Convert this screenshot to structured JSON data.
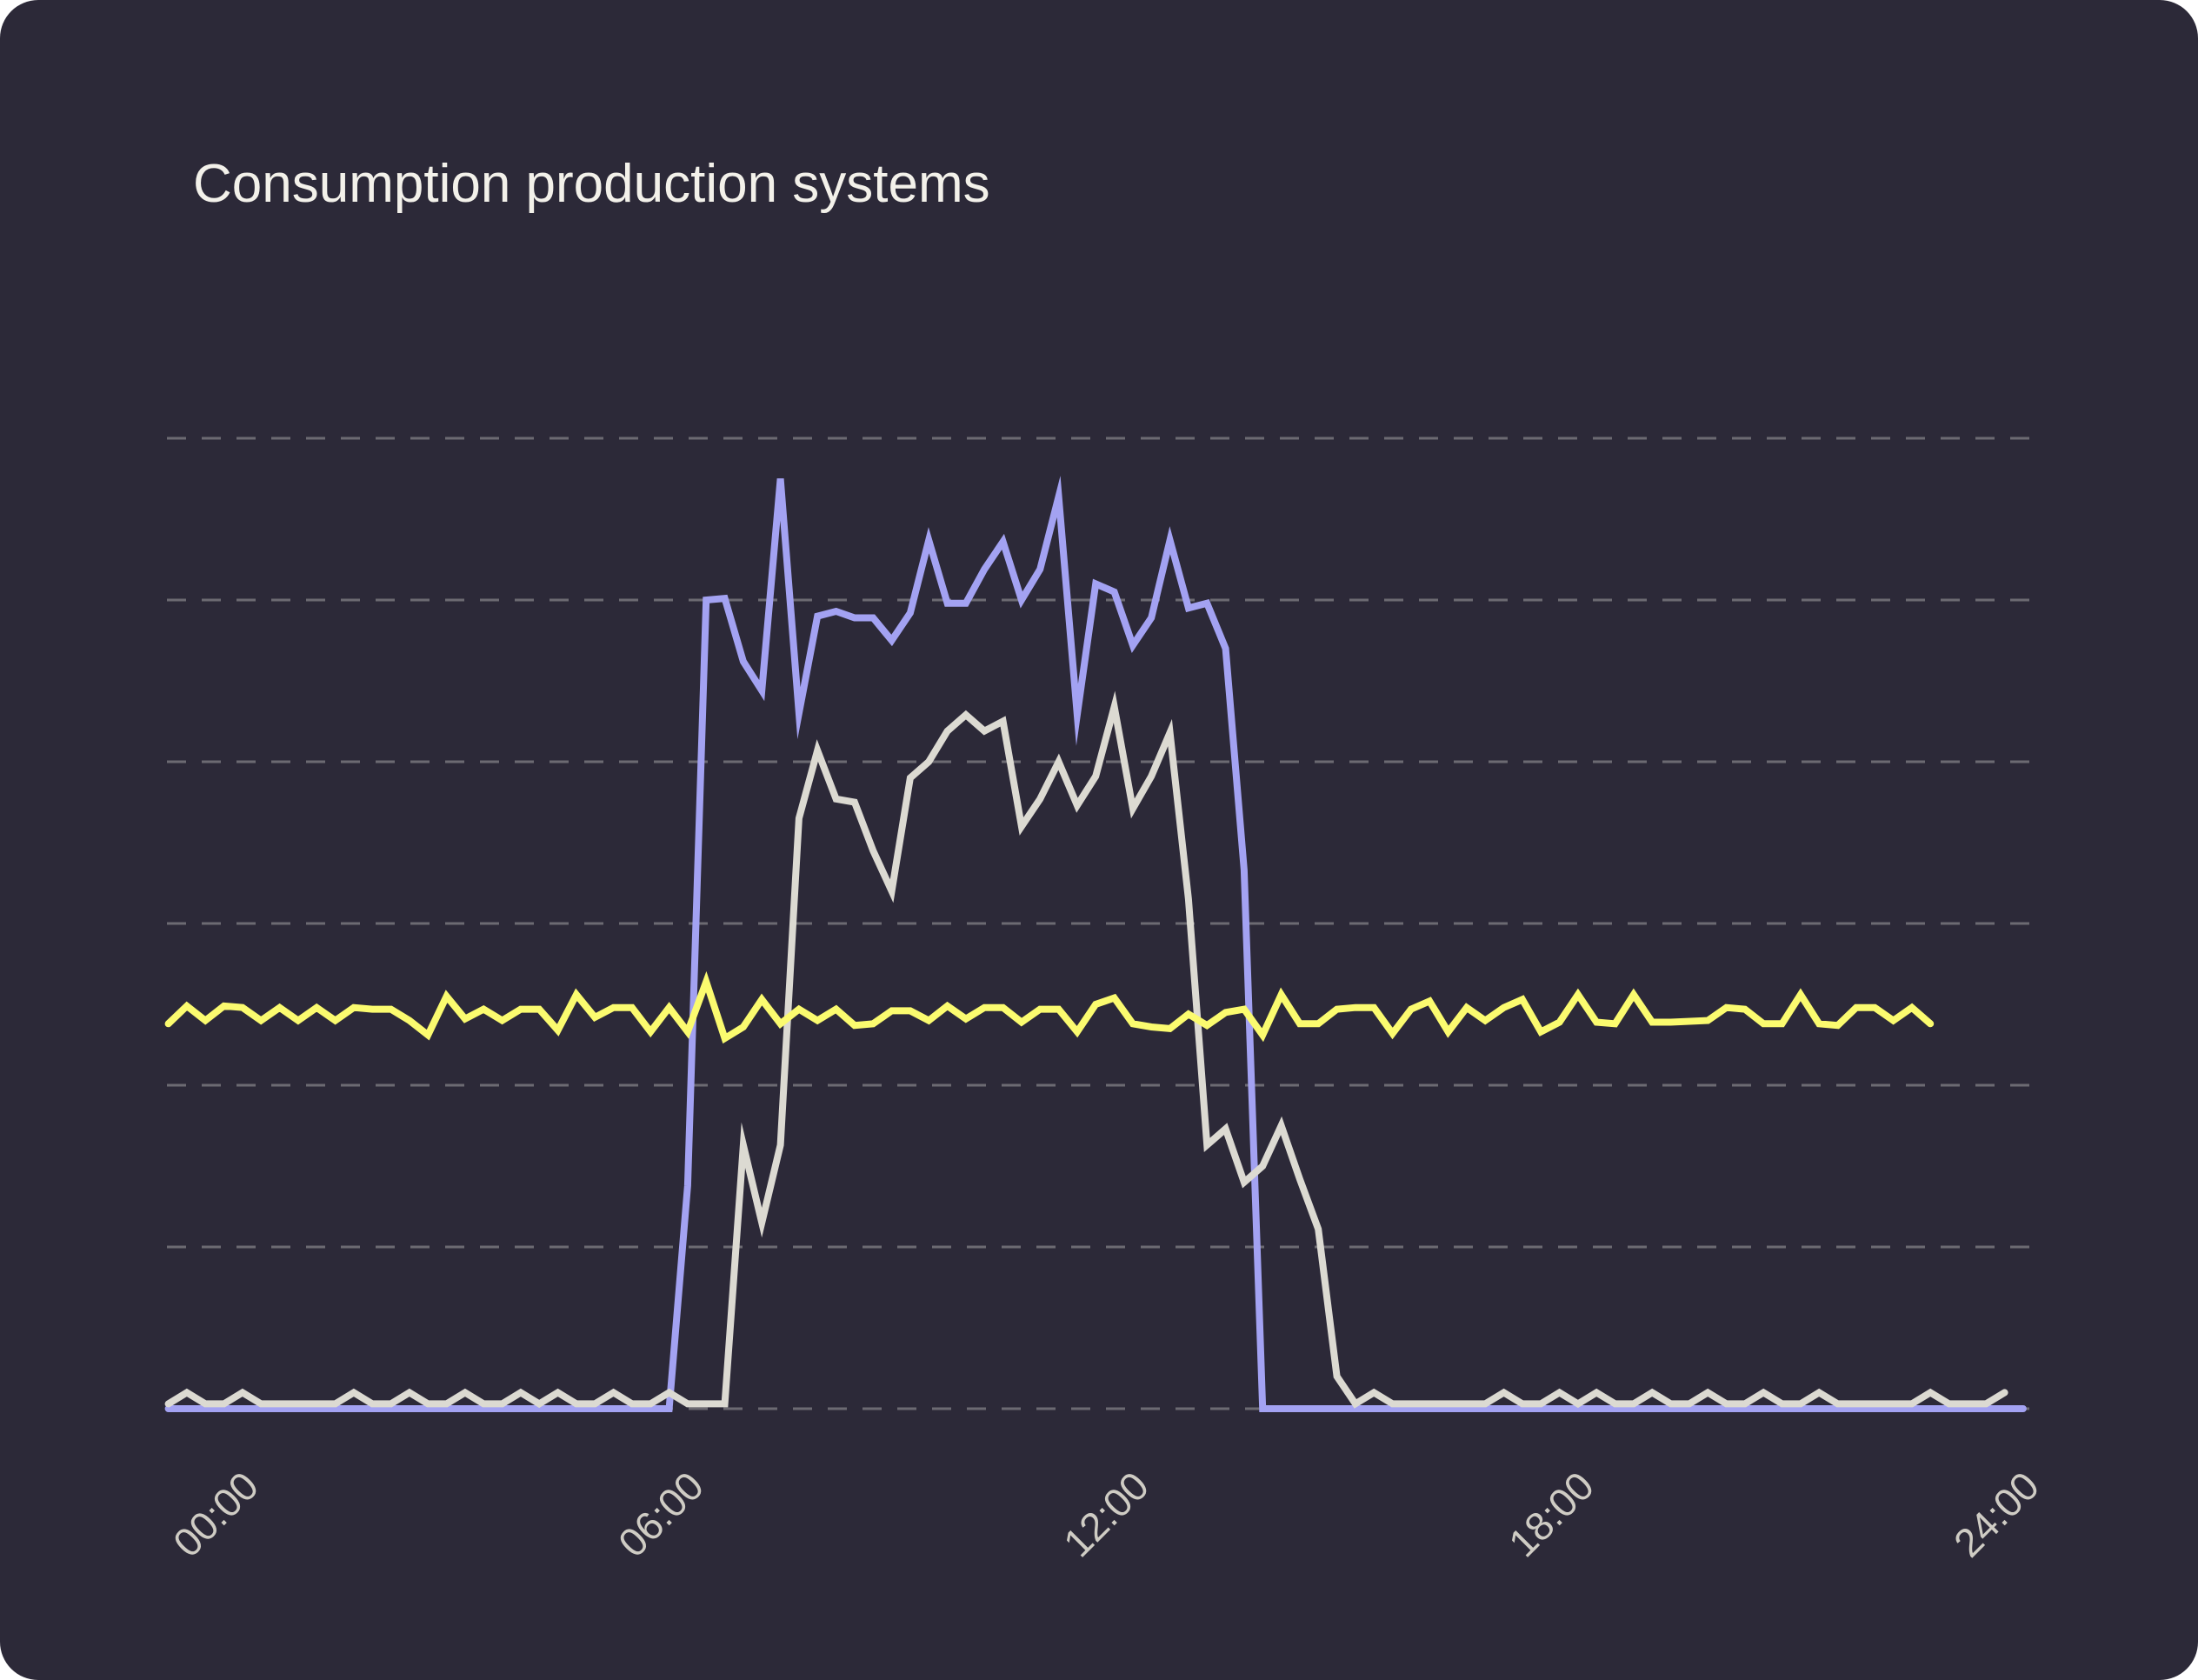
{
  "title": "Consumption production systems",
  "colors": {
    "background": "#2c2938",
    "grid": "#6c6a72",
    "tick_text": "#cfccc4",
    "title_text": "#f3f1ea"
  },
  "chart_data": {
    "type": "line",
    "title": "Consumption production systems",
    "xlabel": "",
    "ylabel": "",
    "xlim": [
      -1.125,
      24.0
    ],
    "ylim": [
      0,
      6
    ],
    "grid": true,
    "x_ticks": [
      "00:00",
      "06:00",
      "12:00",
      "18:00",
      "24:00"
    ],
    "x_tick_values": [
      0,
      6,
      12,
      18,
      24
    ],
    "series": [
      {
        "color": "#a3a2f2",
        "points": [
          [
            -1.13,
            0.0
          ],
          [
            -0.88,
            0.0
          ],
          [
            -0.63,
            0.0
          ],
          [
            -0.38,
            0.0
          ],
          [
            -0.13,
            0.0
          ],
          [
            0.12,
            0.0
          ],
          [
            0.37,
            0.0
          ],
          [
            0.62,
            0.0
          ],
          [
            0.87,
            0.0
          ],
          [
            1.12,
            0.0
          ],
          [
            1.37,
            0.0
          ],
          [
            1.62,
            0.0
          ],
          [
            1.87,
            0.0
          ],
          [
            2.12,
            0.0
          ],
          [
            2.37,
            0.0
          ],
          [
            2.62,
            0.0
          ],
          [
            2.87,
            0.0
          ],
          [
            3.12,
            0.0
          ],
          [
            3.37,
            0.0
          ],
          [
            3.62,
            0.0
          ],
          [
            3.87,
            0.0
          ],
          [
            4.12,
            0.0
          ],
          [
            4.37,
            0.0
          ],
          [
            4.62,
            0.0
          ],
          [
            4.87,
            0.0
          ],
          [
            5.12,
            0.0
          ],
          [
            5.37,
            0.0
          ],
          [
            5.62,
            0.0
          ],
          [
            5.87,
            1.38
          ],
          [
            6.12,
            5.0
          ],
          [
            6.37,
            5.01
          ],
          [
            6.62,
            4.62
          ],
          [
            6.87,
            4.44
          ],
          [
            7.12,
            5.75
          ],
          [
            7.37,
            4.3
          ],
          [
            7.62,
            4.9
          ],
          [
            7.87,
            4.93
          ],
          [
            8.12,
            4.89
          ],
          [
            8.37,
            4.89
          ],
          [
            8.62,
            4.75
          ],
          [
            8.87,
            4.92
          ],
          [
            9.12,
            5.37
          ],
          [
            9.37,
            4.98
          ],
          [
            9.62,
            4.98
          ],
          [
            9.87,
            5.19
          ],
          [
            10.12,
            5.36
          ],
          [
            10.37,
            5.0
          ],
          [
            10.62,
            5.19
          ],
          [
            10.87,
            5.64
          ],
          [
            11.12,
            4.29
          ],
          [
            11.37,
            5.1
          ],
          [
            11.62,
            5.05
          ],
          [
            11.87,
            4.72
          ],
          [
            12.12,
            4.89
          ],
          [
            12.37,
            5.37
          ],
          [
            12.62,
            4.95
          ],
          [
            12.87,
            4.98
          ],
          [
            13.12,
            4.7
          ],
          [
            13.37,
            3.33
          ],
          [
            13.62,
            0.0
          ],
          [
            13.87,
            0.0
          ],
          [
            14.12,
            0.0
          ],
          [
            14.37,
            0.0
          ],
          [
            14.62,
            0.0
          ],
          [
            14.87,
            0.0
          ],
          [
            15.12,
            0.0
          ],
          [
            15.37,
            0.0
          ],
          [
            15.62,
            0.0
          ],
          [
            15.87,
            0.0
          ],
          [
            16.12,
            0.0
          ],
          [
            16.37,
            0.0
          ],
          [
            16.62,
            0.0
          ],
          [
            16.87,
            0.0
          ],
          [
            17.12,
            0.0
          ],
          [
            17.37,
            0.0
          ],
          [
            17.62,
            0.0
          ],
          [
            17.87,
            0.0
          ],
          [
            18.12,
            0.0
          ],
          [
            18.37,
            0.0
          ],
          [
            18.62,
            0.0
          ],
          [
            18.87,
            0.0
          ],
          [
            19.12,
            0.0
          ],
          [
            19.37,
            0.0
          ],
          [
            19.62,
            0.0
          ],
          [
            19.87,
            0.0
          ],
          [
            20.12,
            0.0
          ],
          [
            20.37,
            0.0
          ],
          [
            20.62,
            0.0
          ],
          [
            20.87,
            0.0
          ],
          [
            21.12,
            0.0
          ],
          [
            21.37,
            0.0
          ],
          [
            21.62,
            0.0
          ],
          [
            21.87,
            0.0
          ],
          [
            22.12,
            0.0
          ],
          [
            22.37,
            0.0
          ],
          [
            22.62,
            0.0
          ],
          [
            22.87,
            0.0
          ],
          [
            23.12,
            0.0
          ],
          [
            23.37,
            0.0
          ],
          [
            23.62,
            0.0
          ],
          [
            23.87,
            0.0
          ]
        ]
      },
      {
        "color": "#dcdad2",
        "points": [
          [
            -1.13,
            0.03
          ],
          [
            -0.88,
            0.1
          ],
          [
            -0.63,
            0.03
          ],
          [
            -0.38,
            0.03
          ],
          [
            -0.13,
            0.1
          ],
          [
            0.12,
            0.03
          ],
          [
            0.37,
            0.03
          ],
          [
            0.62,
            0.03
          ],
          [
            0.87,
            0.03
          ],
          [
            1.12,
            0.03
          ],
          [
            1.37,
            0.1
          ],
          [
            1.62,
            0.03
          ],
          [
            1.87,
            0.03
          ],
          [
            2.12,
            0.1
          ],
          [
            2.37,
            0.03
          ],
          [
            2.62,
            0.03
          ],
          [
            2.87,
            0.1
          ],
          [
            3.12,
            0.03
          ],
          [
            3.37,
            0.03
          ],
          [
            3.62,
            0.1
          ],
          [
            3.87,
            0.03
          ],
          [
            4.12,
            0.1
          ],
          [
            4.37,
            0.03
          ],
          [
            4.62,
            0.03
          ],
          [
            4.87,
            0.1
          ],
          [
            5.12,
            0.03
          ],
          [
            5.37,
            0.03
          ],
          [
            5.62,
            0.1
          ],
          [
            5.87,
            0.03
          ],
          [
            6.12,
            0.03
          ],
          [
            6.37,
            0.03
          ],
          [
            6.62,
            1.63
          ],
          [
            6.87,
            1.15
          ],
          [
            7.12,
            1.63
          ],
          [
            7.37,
            3.65
          ],
          [
            7.62,
            4.07
          ],
          [
            7.87,
            3.77
          ],
          [
            8.12,
            3.75
          ],
          [
            8.37,
            3.45
          ],
          [
            8.62,
            3.2
          ],
          [
            8.87,
            3.9
          ],
          [
            9.12,
            4.0
          ],
          [
            9.37,
            4.19
          ],
          [
            9.62,
            4.29
          ],
          [
            9.87,
            4.19
          ],
          [
            10.12,
            4.25
          ],
          [
            10.37,
            3.6
          ],
          [
            10.62,
            3.77
          ],
          [
            10.87,
            4.0
          ],
          [
            11.12,
            3.73
          ],
          [
            11.37,
            3.91
          ],
          [
            11.62,
            4.34
          ],
          [
            11.87,
            3.71
          ],
          [
            12.12,
            3.91
          ],
          [
            12.37,
            4.18
          ],
          [
            12.62,
            3.15
          ],
          [
            12.87,
            1.63
          ],
          [
            13.12,
            1.73
          ],
          [
            13.37,
            1.4
          ],
          [
            13.62,
            1.5
          ],
          [
            13.87,
            1.75
          ],
          [
            14.12,
            1.42
          ],
          [
            14.37,
            1.11
          ],
          [
            14.62,
            0.2
          ],
          [
            14.87,
            0.03
          ],
          [
            15.12,
            0.1
          ],
          [
            15.37,
            0.03
          ],
          [
            15.62,
            0.03
          ],
          [
            15.87,
            0.03
          ],
          [
            16.12,
            0.03
          ],
          [
            16.37,
            0.03
          ],
          [
            16.62,
            0.03
          ],
          [
            16.87,
            0.1
          ],
          [
            17.12,
            0.03
          ],
          [
            17.37,
            0.03
          ],
          [
            17.62,
            0.1
          ],
          [
            17.87,
            0.03
          ],
          [
            18.12,
            0.1
          ],
          [
            18.37,
            0.03
          ],
          [
            18.62,
            0.03
          ],
          [
            18.87,
            0.1
          ],
          [
            19.12,
            0.03
          ],
          [
            19.37,
            0.03
          ],
          [
            19.62,
            0.1
          ],
          [
            19.87,
            0.03
          ],
          [
            20.12,
            0.03
          ],
          [
            20.37,
            0.1
          ],
          [
            20.62,
            0.03
          ],
          [
            20.87,
            0.03
          ],
          [
            21.12,
            0.1
          ],
          [
            21.37,
            0.03
          ],
          [
            21.62,
            0.03
          ],
          [
            21.87,
            0.03
          ],
          [
            22.12,
            0.03
          ],
          [
            22.37,
            0.03
          ],
          [
            22.62,
            0.1
          ],
          [
            22.87,
            0.03
          ],
          [
            23.12,
            0.03
          ],
          [
            23.37,
            0.03
          ],
          [
            23.62,
            0.1
          ]
        ]
      },
      {
        "color": "#fbfb6f",
        "points": [
          [
            -1.13,
            2.38
          ],
          [
            -0.88,
            2.49
          ],
          [
            -0.63,
            2.4
          ],
          [
            -0.38,
            2.49
          ],
          [
            -0.13,
            2.48
          ],
          [
            0.12,
            2.4
          ],
          [
            0.37,
            2.48
          ],
          [
            0.62,
            2.4
          ],
          [
            0.87,
            2.48
          ],
          [
            1.12,
            2.4
          ],
          [
            1.37,
            2.48
          ],
          [
            1.62,
            2.47
          ],
          [
            1.87,
            2.47
          ],
          [
            2.12,
            2.4
          ],
          [
            2.37,
            2.31
          ],
          [
            2.62,
            2.55
          ],
          [
            2.87,
            2.41
          ],
          [
            3.12,
            2.47
          ],
          [
            3.37,
            2.4
          ],
          [
            3.62,
            2.47
          ],
          [
            3.87,
            2.47
          ],
          [
            4.12,
            2.34
          ],
          [
            4.37,
            2.56
          ],
          [
            4.62,
            2.42
          ],
          [
            4.87,
            2.48
          ],
          [
            5.12,
            2.48
          ],
          [
            5.37,
            2.33
          ],
          [
            5.62,
            2.48
          ],
          [
            5.87,
            2.33
          ],
          [
            6.12,
            2.64
          ],
          [
            6.37,
            2.29
          ],
          [
            6.62,
            2.36
          ],
          [
            6.87,
            2.53
          ],
          [
            7.12,
            2.38
          ],
          [
            7.37,
            2.47
          ],
          [
            7.62,
            2.4
          ],
          [
            7.87,
            2.47
          ],
          [
            8.12,
            2.37
          ],
          [
            8.37,
            2.38
          ],
          [
            8.62,
            2.46
          ],
          [
            8.87,
            2.46
          ],
          [
            9.12,
            2.4
          ],
          [
            9.37,
            2.49
          ],
          [
            9.62,
            2.41
          ],
          [
            9.87,
            2.48
          ],
          [
            10.12,
            2.48
          ],
          [
            10.37,
            2.39
          ],
          [
            10.62,
            2.47
          ],
          [
            10.87,
            2.47
          ],
          [
            11.12,
            2.33
          ],
          [
            11.37,
            2.5
          ],
          [
            11.62,
            2.54
          ],
          [
            11.87,
            2.38
          ],
          [
            12.12,
            2.36
          ],
          [
            12.37,
            2.35
          ],
          [
            12.62,
            2.44
          ],
          [
            12.87,
            2.37
          ],
          [
            13.12,
            2.45
          ],
          [
            13.37,
            2.47
          ],
          [
            13.62,
            2.31
          ],
          [
            13.87,
            2.56
          ],
          [
            14.12,
            2.38
          ],
          [
            14.37,
            2.38
          ],
          [
            14.62,
            2.47
          ],
          [
            14.87,
            2.48
          ],
          [
            15.12,
            2.48
          ],
          [
            15.37,
            2.32
          ],
          [
            15.62,
            2.47
          ],
          [
            15.87,
            2.52
          ],
          [
            16.12,
            2.33
          ],
          [
            16.37,
            2.48
          ],
          [
            16.62,
            2.4
          ],
          [
            16.87,
            2.48
          ],
          [
            17.12,
            2.53
          ],
          [
            17.37,
            2.33
          ],
          [
            17.62,
            2.39
          ],
          [
            17.87,
            2.56
          ],
          [
            18.12,
            2.39
          ],
          [
            18.37,
            2.38
          ],
          [
            18.62,
            2.56
          ],
          [
            18.87,
            2.39
          ],
          [
            19.12,
            2.39
          ],
          [
            19.62,
            2.4
          ],
          [
            19.87,
            2.48
          ],
          [
            20.12,
            2.47
          ],
          [
            20.37,
            2.38
          ],
          [
            20.62,
            2.38
          ],
          [
            20.87,
            2.56
          ],
          [
            21.12,
            2.38
          ],
          [
            21.37,
            2.37
          ],
          [
            21.62,
            2.48
          ],
          [
            21.87,
            2.48
          ],
          [
            22.12,
            2.4
          ],
          [
            22.37,
            2.48
          ],
          [
            22.62,
            2.38
          ]
        ]
      }
    ]
  }
}
